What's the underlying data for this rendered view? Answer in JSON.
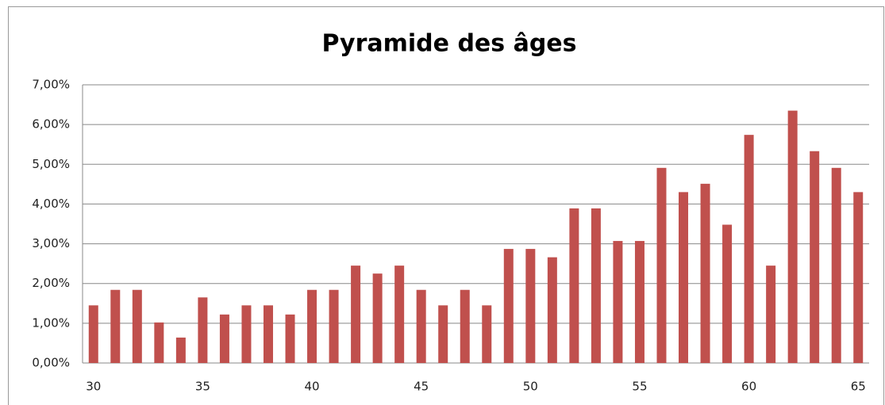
{
  "chart_data": {
    "type": "bar",
    "title": "Pyramide des âges",
    "categories": [
      "30",
      null,
      null,
      null,
      null,
      "35",
      null,
      null,
      null,
      null,
      "40",
      null,
      null,
      null,
      null,
      "45",
      null,
      null,
      null,
      null,
      "50",
      null,
      null,
      null,
      null,
      "55",
      null,
      null,
      null,
      null,
      "60",
      null,
      null,
      null,
      null,
      "65"
    ],
    "values": [
      1.45,
      1.84,
      1.84,
      1.02,
      0.64,
      1.65,
      1.22,
      1.45,
      1.45,
      1.22,
      1.84,
      1.84,
      2.45,
      2.25,
      2.45,
      1.84,
      1.45,
      1.84,
      1.45,
      2.87,
      2.87,
      2.66,
      3.89,
      3.89,
      3.07,
      3.07,
      4.91,
      4.3,
      4.51,
      3.48,
      5.74,
      2.45,
      6.35,
      5.33,
      4.91,
      4.3
    ],
    "color": "#c0504d",
    "ylim": [
      0,
      7
    ],
    "yticks": [
      {
        "value": 0,
        "label": "0,00%"
      },
      {
        "value": 1,
        "label": "1,00%"
      },
      {
        "value": 2,
        "label": "2,00%"
      },
      {
        "value": 3,
        "label": "3,00%"
      },
      {
        "value": 4,
        "label": "4,00%"
      },
      {
        "value": 5,
        "label": "5,00%"
      },
      {
        "value": 6,
        "label": "6,00%"
      },
      {
        "value": 7,
        "label": "7,00%"
      }
    ],
    "grid": true
  }
}
